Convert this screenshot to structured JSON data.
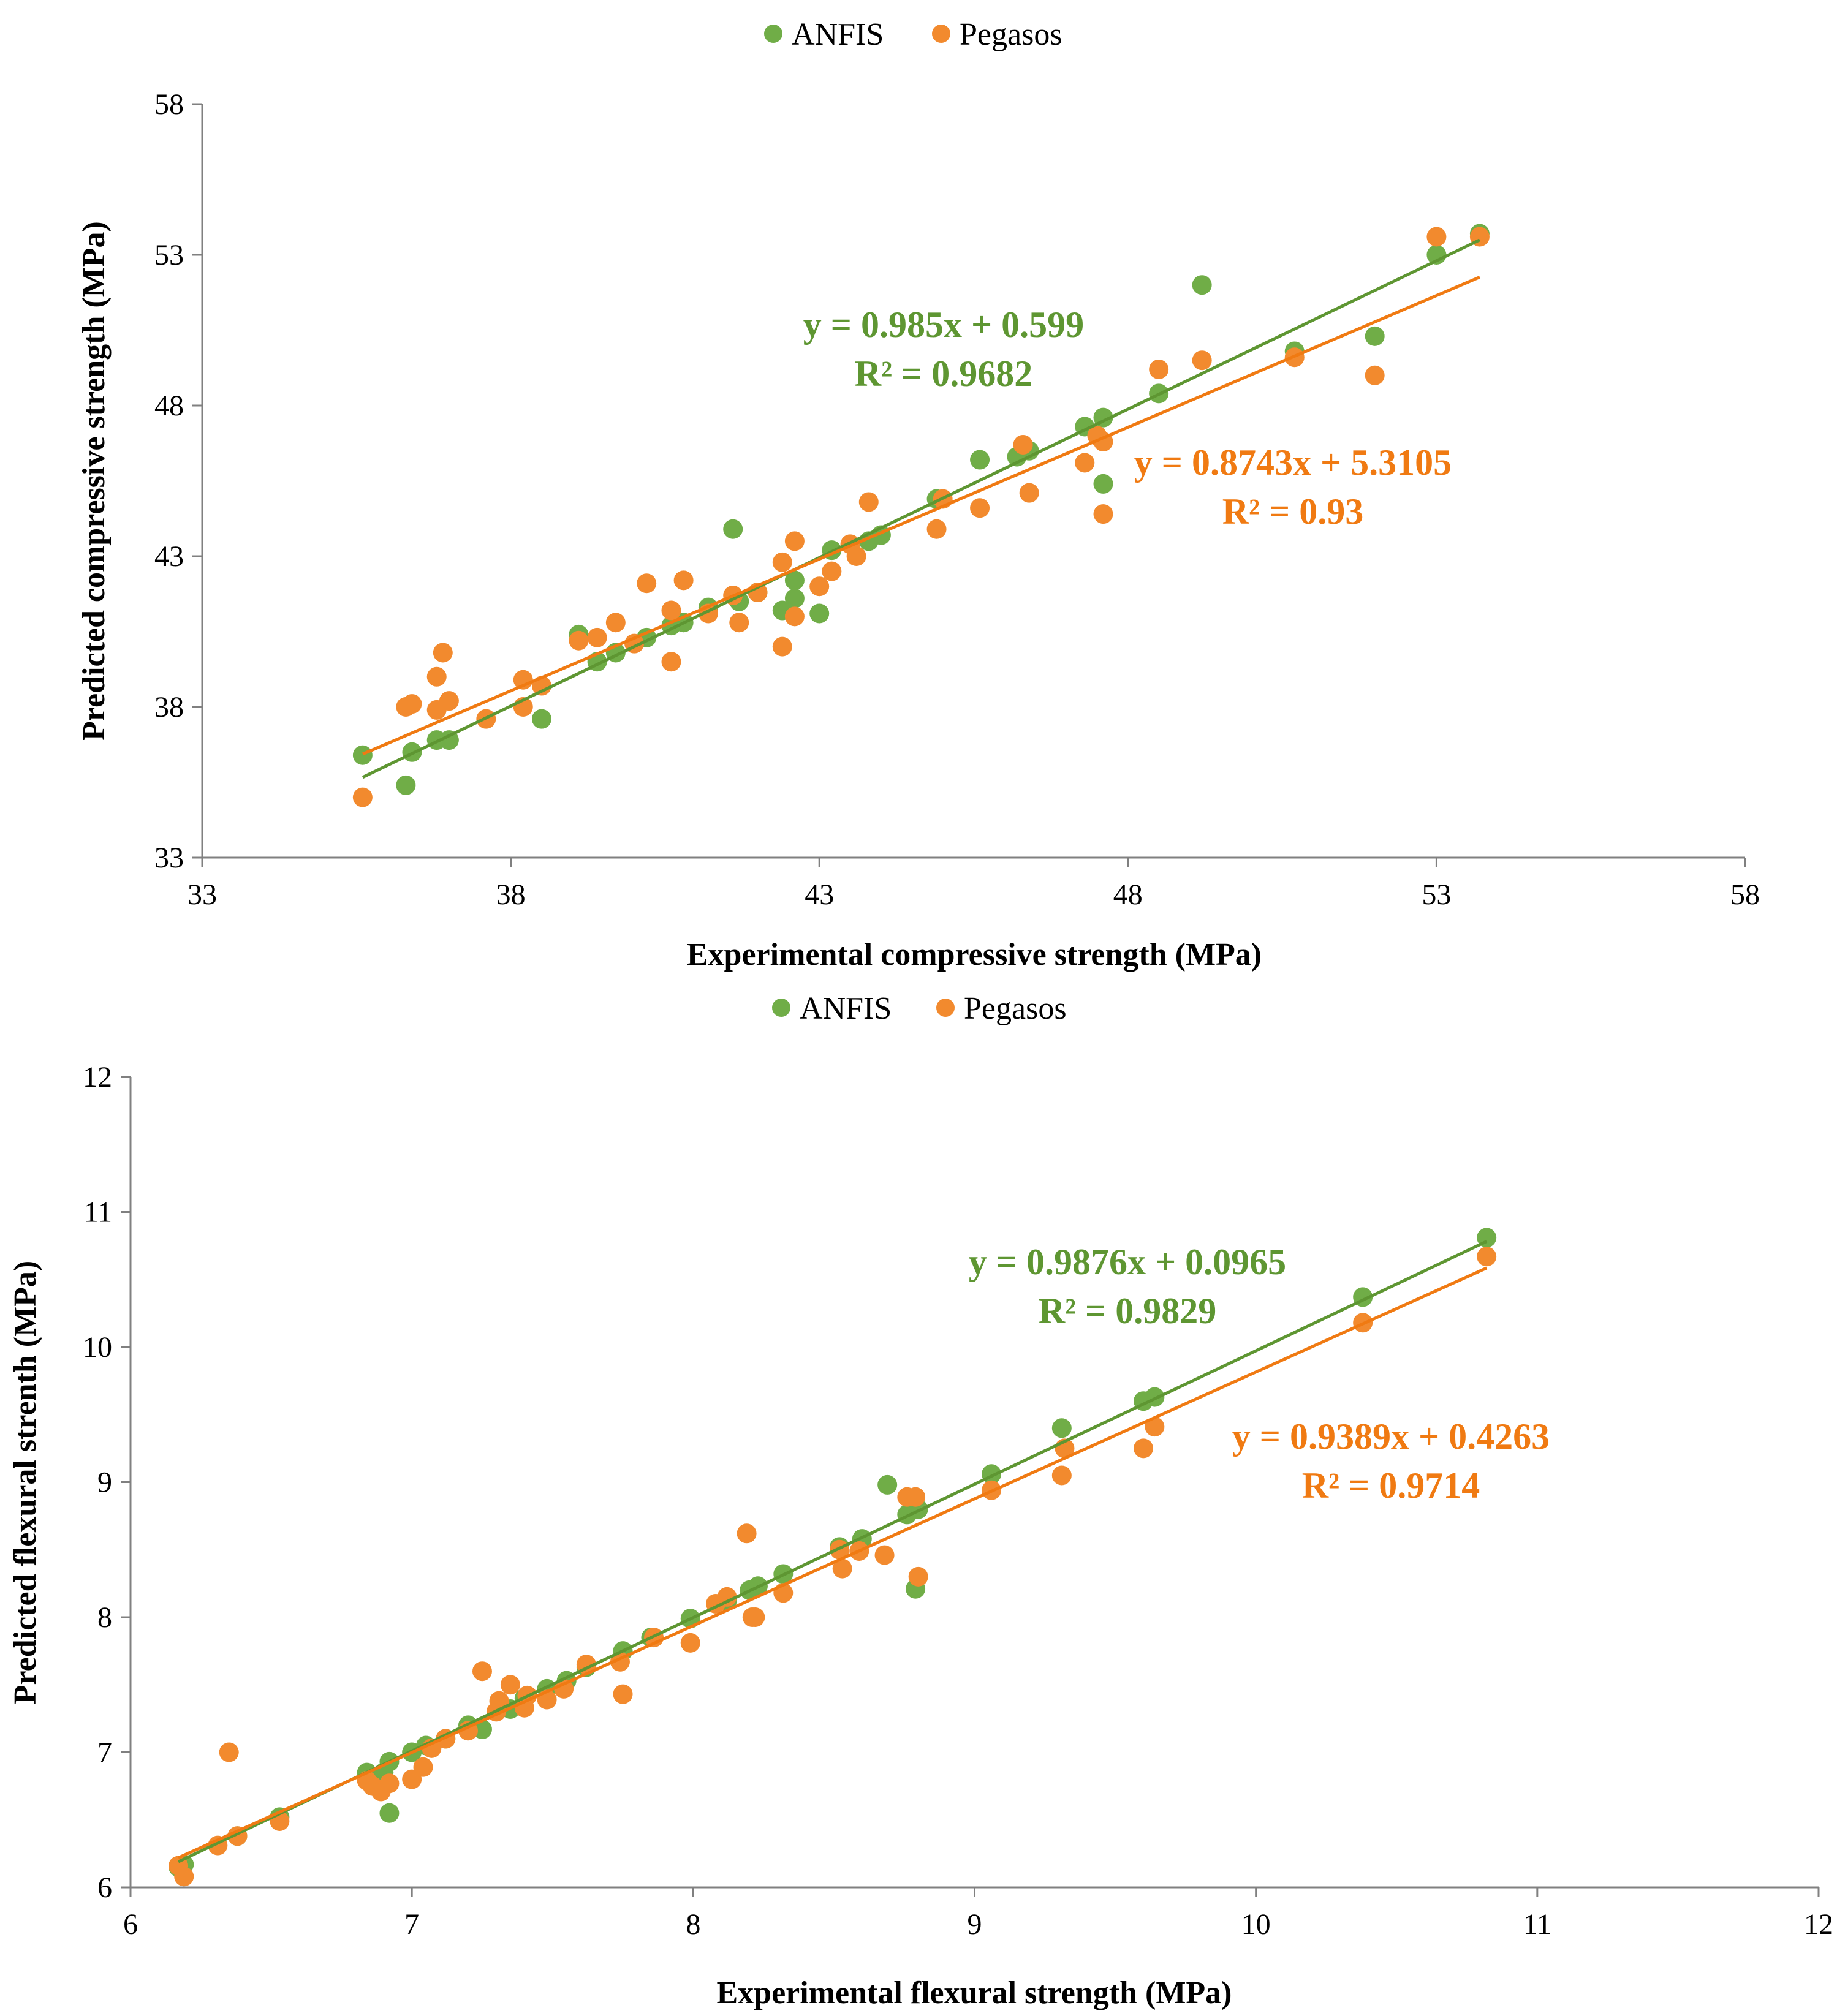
{
  "colors": {
    "anfis": "#70AD47",
    "pegasos": "#F28A2E",
    "anfis_line": "#5E9632",
    "pegasos_line": "#F07A12",
    "eq_anfis": "#5E9632",
    "eq_pegasos": "#F07A12",
    "axis": "#808080"
  },
  "chart_data": [
    {
      "type": "scatter",
      "title": "",
      "legend_position": "top-center",
      "legend": [
        "ANFIS",
        "Pegasos"
      ],
      "xlabel": "Experimental compressive strength (MPa)",
      "ylabel": "Predicted compressive strength (MPa)",
      "xlim": [
        33,
        58
      ],
      "ylim": [
        33,
        58
      ],
      "xticks": [
        "33",
        "38",
        "43",
        "48",
        "53",
        "58"
      ],
      "yticks": [
        "33",
        "38",
        "43",
        "48",
        "53",
        "58"
      ],
      "grid": false,
      "series": [
        {
          "name": "ANFIS",
          "trendline": {
            "slope": 0.985,
            "intercept": 0.599,
            "x_range": [
              35.6,
              53.7
            ]
          },
          "equation": "y = 0.985x + 0.599",
          "r2": "R² = 0.9682",
          "points": [
            [
              35.6,
              36.4
            ],
            [
              36.3,
              35.4
            ],
            [
              36.4,
              36.5
            ],
            [
              36.8,
              36.9
            ],
            [
              37.0,
              36.9
            ],
            [
              38.5,
              37.6
            ],
            [
              39.1,
              40.4
            ],
            [
              39.4,
              39.5
            ],
            [
              39.7,
              39.8
            ],
            [
              40.2,
              40.3
            ],
            [
              40.6,
              40.7
            ],
            [
              40.8,
              40.8
            ],
            [
              41.2,
              41.3
            ],
            [
              41.6,
              43.9
            ],
            [
              41.7,
              41.5
            ],
            [
              42.0,
              41.8
            ],
            [
              42.4,
              41.2
            ],
            [
              42.6,
              41.6
            ],
            [
              42.6,
              42.2
            ],
            [
              43.0,
              41.1
            ],
            [
              43.2,
              43.2
            ],
            [
              43.8,
              43.5
            ],
            [
              44.0,
              43.7
            ],
            [
              44.9,
              44.9
            ],
            [
              45.6,
              46.2
            ],
            [
              46.2,
              46.3
            ],
            [
              46.4,
              46.5
            ],
            [
              47.3,
              47.3
            ],
            [
              47.6,
              47.6
            ],
            [
              47.6,
              45.4
            ],
            [
              48.5,
              48.4
            ],
            [
              49.2,
              52.0
            ],
            [
              50.7,
              49.8
            ],
            [
              52.0,
              50.3
            ],
            [
              53.0,
              53.0
            ],
            [
              53.7,
              53.7
            ]
          ]
        },
        {
          "name": "Pegasos",
          "trendline": {
            "slope": 0.8743,
            "intercept": 5.3105,
            "x_range": [
              35.6,
              53.7
            ]
          },
          "equation": "y = 0.8743x + 5.3105",
          "r2": "R² = 0.93",
          "points": [
            [
              35.6,
              35.0
            ],
            [
              36.3,
              38.0
            ],
            [
              36.4,
              38.1
            ],
            [
              36.8,
              37.9
            ],
            [
              36.8,
              39.0
            ],
            [
              36.9,
              39.8
            ],
            [
              37.0,
              38.2
            ],
            [
              37.6,
              37.6
            ],
            [
              38.2,
              38.9
            ],
            [
              38.2,
              38.0
            ],
            [
              38.5,
              38.7
            ],
            [
              39.1,
              40.2
            ],
            [
              39.4,
              40.3
            ],
            [
              39.7,
              40.8
            ],
            [
              40.0,
              40.1
            ],
            [
              40.2,
              42.1
            ],
            [
              40.6,
              41.2
            ],
            [
              40.6,
              39.5
            ],
            [
              40.8,
              42.2
            ],
            [
              41.2,
              41.1
            ],
            [
              41.6,
              41.7
            ],
            [
              41.7,
              40.8
            ],
            [
              42.0,
              41.8
            ],
            [
              42.4,
              42.8
            ],
            [
              42.4,
              40.0
            ],
            [
              42.6,
              43.5
            ],
            [
              42.6,
              41.0
            ],
            [
              43.0,
              42.0
            ],
            [
              43.2,
              42.5
            ],
            [
              43.5,
              43.4
            ],
            [
              43.6,
              43.0
            ],
            [
              43.8,
              44.8
            ],
            [
              44.9,
              43.9
            ],
            [
              45.0,
              44.9
            ],
            [
              45.6,
              44.6
            ],
            [
              46.3,
              46.7
            ],
            [
              46.4,
              45.1
            ],
            [
              47.3,
              46.1
            ],
            [
              47.5,
              47.0
            ],
            [
              47.6,
              46.8
            ],
            [
              47.6,
              44.4
            ],
            [
              48.5,
              49.2
            ],
            [
              49.2,
              49.5
            ],
            [
              50.7,
              49.6
            ],
            [
              52.0,
              49.0
            ],
            [
              53.0,
              53.6
            ],
            [
              53.7,
              53.6
            ]
          ]
        }
      ],
      "annotations": [
        {
          "series": "ANFIS",
          "equation": "y = 0.985x + 0.599",
          "r2": "R² = 0.9682"
        },
        {
          "series": "Pegasos",
          "equation": "y = 0.8743x + 5.3105",
          "r2": "R² = 0.93"
        }
      ]
    },
    {
      "type": "scatter",
      "title": "",
      "legend_position": "top-center",
      "legend": [
        "ANFIS",
        "Pegasos"
      ],
      "xlabel": "Experimental flexural strength (MPa)",
      "ylabel": "Predicted flexural strenth (MPa)",
      "xlim": [
        6,
        12
      ],
      "ylim": [
        6,
        12
      ],
      "xticks": [
        "6",
        "7",
        "8",
        "9",
        "10",
        "11",
        "12"
      ],
      "yticks": [
        "6",
        "7",
        "8",
        "9",
        "10",
        "11",
        "12"
      ],
      "grid": false,
      "series": [
        {
          "name": "ANFIS",
          "trendline": {
            "slope": 0.9876,
            "intercept": 0.0965,
            "x_range": [
              6.17,
              10.82
            ]
          },
          "equation": "y = 0.9876x + 0.0965",
          "r2": "R² = 0.9829",
          "points": [
            [
              6.17,
              6.15
            ],
            [
              6.19,
              6.17
            ],
            [
              6.38,
              6.38
            ],
            [
              6.53,
              6.52
            ],
            [
              6.84,
              6.85
            ],
            [
              6.9,
              6.85
            ],
            [
              6.92,
              6.93
            ],
            [
              6.92,
              6.55
            ],
            [
              7.0,
              7.0
            ],
            [
              7.05,
              7.05
            ],
            [
              7.12,
              7.1
            ],
            [
              7.2,
              7.2
            ],
            [
              7.25,
              7.17
            ],
            [
              7.35,
              7.32
            ],
            [
              7.4,
              7.4
            ],
            [
              7.48,
              7.47
            ],
            [
              7.55,
              7.53
            ],
            [
              7.62,
              7.63
            ],
            [
              7.75,
              7.75
            ],
            [
              7.85,
              7.85
            ],
            [
              7.99,
              7.99
            ],
            [
              8.12,
              8.12
            ],
            [
              8.2,
              8.2
            ],
            [
              8.23,
              8.23
            ],
            [
              8.32,
              8.32
            ],
            [
              8.52,
              8.52
            ],
            [
              8.6,
              8.58
            ],
            [
              8.69,
              8.98
            ],
            [
              8.76,
              8.76
            ],
            [
              8.8,
              8.8
            ],
            [
              8.79,
              8.21
            ],
            [
              9.06,
              9.06
            ],
            [
              9.31,
              9.4
            ],
            [
              9.6,
              9.6
            ],
            [
              9.64,
              9.63
            ],
            [
              10.38,
              10.37
            ],
            [
              10.82,
              10.81
            ]
          ]
        },
        {
          "name": "Pegasos",
          "trendline": {
            "slope": 0.9389,
            "intercept": 0.4263,
            "x_range": [
              6.17,
              10.82
            ]
          },
          "equation": "y = 0.9389x + 0.4263",
          "r2": "R² = 0.9714",
          "points": [
            [
              6.17,
              6.16
            ],
            [
              6.19,
              6.08
            ],
            [
              6.31,
              6.31
            ],
            [
              6.35,
              7.0
            ],
            [
              6.38,
              6.38
            ],
            [
              6.53,
              6.49
            ],
            [
              6.84,
              6.79
            ],
            [
              6.86,
              6.75
            ],
            [
              6.89,
              6.71
            ],
            [
              6.92,
              6.77
            ],
            [
              7.0,
              6.8
            ],
            [
              7.04,
              6.89
            ],
            [
              7.07,
              7.03
            ],
            [
              7.12,
              7.1
            ],
            [
              7.2,
              7.16
            ],
            [
              7.25,
              7.6
            ],
            [
              7.3,
              7.3
            ],
            [
              7.31,
              7.38
            ],
            [
              7.35,
              7.5
            ],
            [
              7.4,
              7.33
            ],
            [
              7.41,
              7.42
            ],
            [
              7.48,
              7.39
            ],
            [
              7.54,
              7.47
            ],
            [
              7.62,
              7.65
            ],
            [
              7.74,
              7.67
            ],
            [
              7.75,
              7.43
            ],
            [
              7.86,
              7.85
            ],
            [
              7.99,
              7.81
            ],
            [
              8.08,
              8.1
            ],
            [
              8.12,
              8.15
            ],
            [
              8.19,
              8.62
            ],
            [
              8.21,
              8.0
            ],
            [
              8.22,
              8.0
            ],
            [
              8.32,
              8.18
            ],
            [
              8.52,
              8.5
            ],
            [
              8.53,
              8.36
            ],
            [
              8.59,
              8.49
            ],
            [
              8.68,
              8.46
            ],
            [
              8.76,
              8.89
            ],
            [
              8.79,
              8.89
            ],
            [
              8.8,
              8.3
            ],
            [
              9.06,
              8.94
            ],
            [
              9.31,
              9.05
            ],
            [
              9.32,
              9.25
            ],
            [
              9.6,
              9.25
            ],
            [
              9.64,
              9.41
            ],
            [
              10.38,
              10.18
            ],
            [
              10.82,
              10.67
            ]
          ]
        }
      ],
      "annotations": [
        {
          "series": "ANFIS",
          "equation": "y = 0.9876x + 0.0965",
          "r2": "R² = 0.9829"
        },
        {
          "series": "Pegasos",
          "equation": "y = 0.9389x + 0.4263",
          "r2": "R² = 0.9714"
        }
      ]
    }
  ]
}
